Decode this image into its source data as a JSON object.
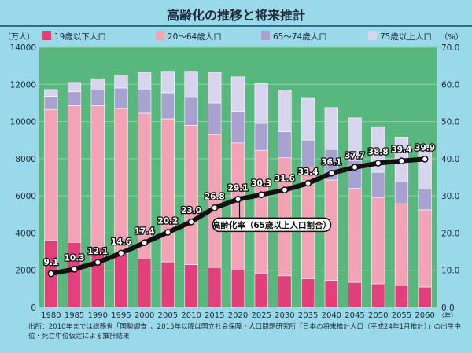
{
  "title": "高齢化の推移と将来推計",
  "source_note": "出所：2010年までは総務省「国勢調査」、2015年以降は国立社会保障・人口問題研究所「日本の将来推計人口（平成24年1月推計）」の出生中位・死亡中位仮定による推計結果",
  "colors": {
    "frame": "#9ad9ea",
    "plot_bg": "#57b77c",
    "grid": "#8ed2a6",
    "age_0_19": "#e1407a",
    "age_20_64": "#f2a4b6",
    "age_65_74": "#a9a2d0",
    "age_75_plus": "#d9d4ee",
    "line": "#111111"
  },
  "chart_data": {
    "type": "bar",
    "stacked": true,
    "title": "高齢化の推移と将来推計",
    "y_left": {
      "unit": "（万人）",
      "min": 0,
      "max": 14000,
      "ticks": [
        0,
        2000,
        4000,
        6000,
        8000,
        10000,
        12000,
        14000
      ]
    },
    "y_right": {
      "unit": "（%）",
      "min": 0,
      "max": 70,
      "ticks": [
        "0.0",
        "10.0",
        "20.0",
        "30.0",
        "40.0",
        "50.0",
        "60.0",
        "70.0"
      ]
    },
    "x_unit": "（年）",
    "categories": [
      "1980",
      "1985",
      "1990",
      "1995",
      "2000",
      "2005",
      "2010",
      "2015",
      "2020",
      "2025",
      "2030",
      "2035",
      "2040",
      "2045",
      "2050",
      "2055",
      "2060"
    ],
    "legend": {
      "position": "top"
    },
    "series": [
      {
        "name": "19歳以下人口",
        "color_key": "age_0_19",
        "values": [
          3600,
          3500,
          3250,
          2900,
          2600,
          2450,
          2300,
          2150,
          2000,
          1850,
          1700,
          1550,
          1450,
          1350,
          1270,
          1180,
          1100
        ]
      },
      {
        "name": "20～64歳人口",
        "color_key": "age_20_64",
        "values": [
          7050,
          7350,
          7600,
          7800,
          7850,
          7700,
          7500,
          7150,
          6850,
          6600,
          6350,
          6000,
          5400,
          5050,
          4650,
          4400,
          4150
        ]
      },
      {
        "name": "65～74歳人口",
        "color_key": "age_65_74",
        "values": [
          700,
          750,
          850,
          1100,
          1300,
          1400,
          1500,
          1700,
          1700,
          1450,
          1400,
          1450,
          1650,
          1500,
          1350,
          1180,
          1120
        ]
      },
      {
        "name": "75歳以上人口",
        "color_key": "age_75_plus",
        "values": [
          370,
          500,
          600,
          700,
          900,
          1150,
          1400,
          1650,
          1850,
          2150,
          2250,
          2250,
          2250,
          2300,
          2450,
          2400,
          2350
        ]
      }
    ],
    "line_series": {
      "name": "高齢化率（65歳以上人口割合）",
      "values": [
        9.1,
        10.3,
        12.1,
        14.6,
        17.4,
        20.2,
        23.0,
        26.8,
        29.1,
        30.3,
        31.6,
        33.4,
        36.1,
        37.7,
        38.8,
        39.4,
        39.9
      ],
      "labels": [
        "9.1",
        "10.3",
        "12.1",
        "14.6",
        "17.4",
        "20.2",
        "23.0",
        "26.8",
        "29.1",
        "30.3",
        "31.6",
        "33.4",
        "36.1",
        "37.7",
        "38.8",
        "39.4",
        "39.9"
      ],
      "callout_category": "2020"
    }
  }
}
